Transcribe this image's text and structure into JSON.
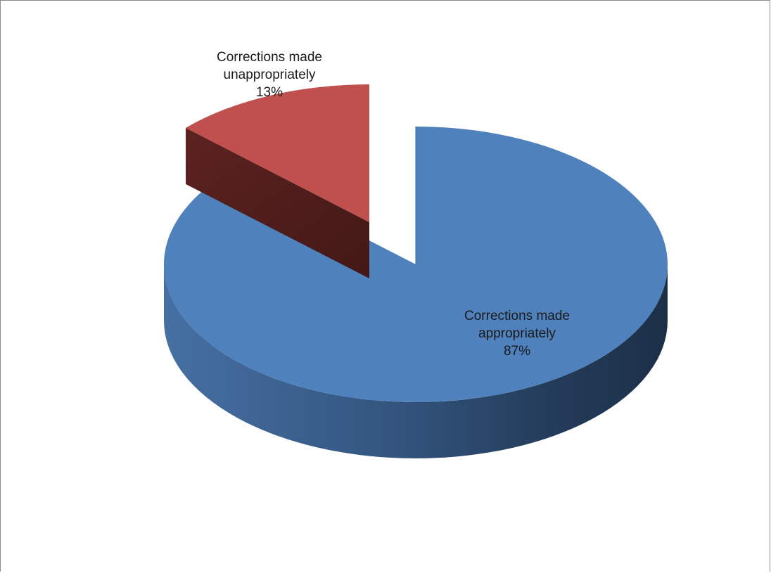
{
  "chart_data": {
    "type": "pie",
    "title": "",
    "slices": [
      {
        "label_lines": [
          "Corrections made",
          "unappropriately"
        ],
        "percent_text": "13%",
        "value": 13,
        "color": "#c0504d",
        "exploded": true
      },
      {
        "label_lines": [
          "Corrections made",
          "appropriately"
        ],
        "percent_text": "87%",
        "value": 87,
        "color": "#4f81bd",
        "exploded": false
      }
    ],
    "style": "3d-pie",
    "legend": "none"
  }
}
